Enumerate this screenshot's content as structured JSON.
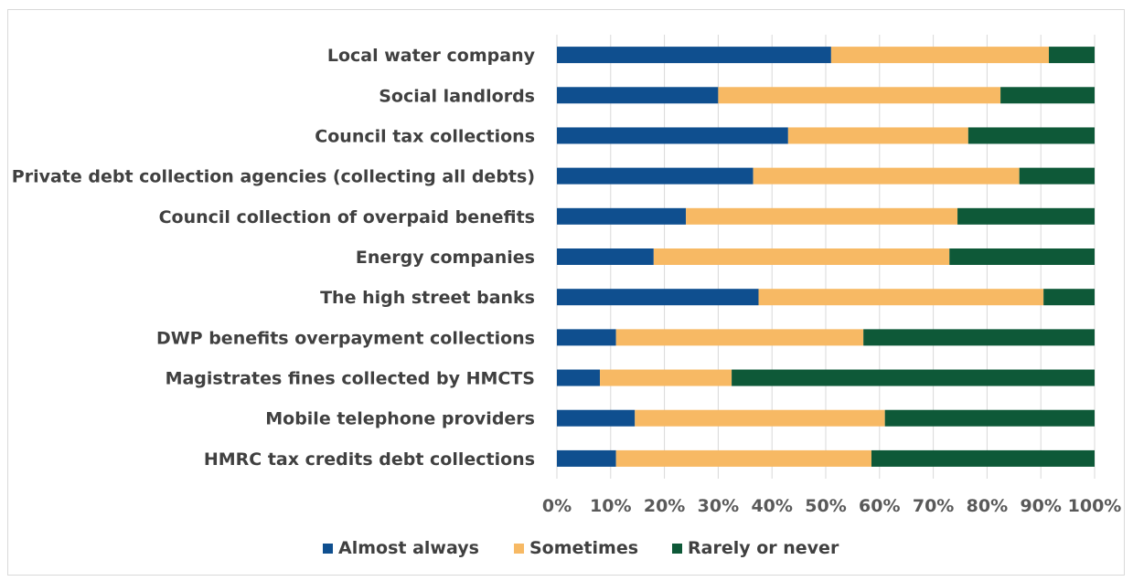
{
  "chart_data": {
    "type": "bar",
    "orientation": "horizontal",
    "stacked": true,
    "categories": [
      "Local water company",
      "Social landlords",
      "Council tax collections",
      "Private debt collection agencies (collecting all debts)",
      "Council collection of overpaid benefits",
      "Energy companies",
      "The high street banks",
      "DWP benefits overpayment collections",
      "Magistrates fines collected by HMCTS",
      "Mobile telephone providers",
      "HMRC tax credits debt collections"
    ],
    "series": [
      {
        "name": "Almost always",
        "color": "#0f4f8f",
        "values": [
          51,
          30,
          43,
          36.5,
          24,
          18,
          37.5,
          11,
          8,
          14.5,
          11
        ]
      },
      {
        "name": "Sometimes",
        "color": "#f7b964",
        "values": [
          40.5,
          52.5,
          33.5,
          49.5,
          50.5,
          55,
          53,
          46,
          24.5,
          46.5,
          47.5
        ]
      },
      {
        "name": "Rarely or never",
        "color": "#0e5938",
        "values": [
          8.5,
          17.5,
          23.5,
          14,
          25.5,
          27,
          9.5,
          43,
          67.5,
          39,
          41.5
        ]
      }
    ],
    "xlim": [
      0,
      100
    ],
    "xticks": [
      "0%",
      "10%",
      "20%",
      "30%",
      "40%",
      "50%",
      "60%",
      "70%",
      "80%",
      "90%",
      "100%"
    ],
    "grid": true,
    "legend": "bottom"
  }
}
